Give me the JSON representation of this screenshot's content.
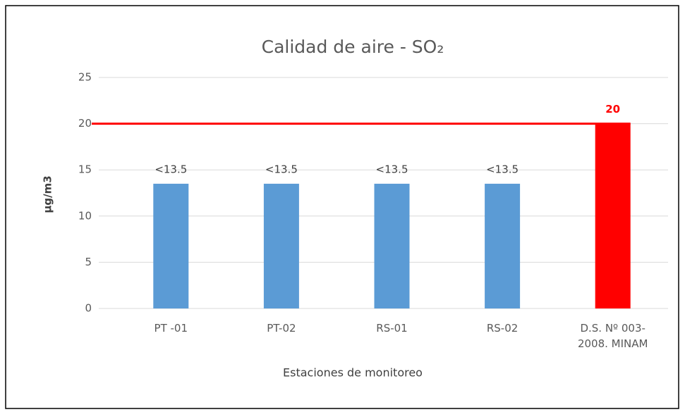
{
  "chart_data": {
    "type": "bar",
    "title": "Calidad de aire - SO₂",
    "x_label": "Estaciones de monitoreo",
    "y_label": "µg/m3",
    "categories": [
      "PT -01",
      "PT-02",
      "RS-01",
      "RS-02",
      "D.S. Nº 003-2008. MINAM"
    ],
    "values": [
      13.5,
      13.5,
      13.5,
      13.5,
      20
    ],
    "value_labels": [
      "<13.5",
      "<13.5",
      "<13.5",
      "<13.5",
      "20"
    ],
    "colors": [
      "#5b9bd5",
      "#5b9bd5",
      "#5b9bd5",
      "#5b9bd5",
      "#ff0000"
    ],
    "value_label_colors": [
      "#404040",
      "#404040",
      "#404040",
      "#404040",
      "#ff0000"
    ],
    "reference_line": {
      "value": 20,
      "color": "#ff0000"
    },
    "ylim": [
      0,
      25
    ],
    "yticks": [
      0,
      5,
      10,
      15,
      20,
      25
    ],
    "grid": true
  }
}
